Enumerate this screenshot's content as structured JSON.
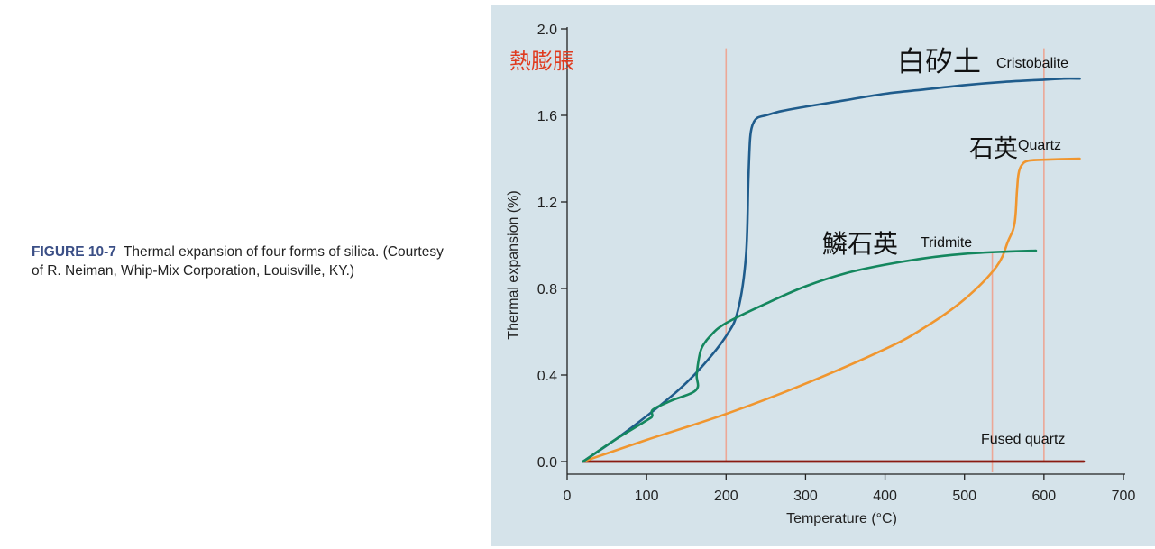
{
  "caption": {
    "label": "FIGURE 10-7",
    "text": "Thermal expansion of four forms of silica. (Courtesy of R. Neiman, Whip-Mix Corporation, Louisville, KY.)"
  },
  "colors": {
    "panel_bg": "#d5e3ea",
    "cristobalite": "#1f5c8c",
    "quartz": "#f0962f",
    "tridymite": "#14875e",
    "fused_quartz": "#8a1b12",
    "vertical_lines": "#eca796",
    "axis": "#222222",
    "japanese_title": "#e03b1f"
  },
  "chart_data": {
    "type": "line",
    "title": "",
    "annotation_title": "熱膨脹",
    "xlabel": "Temperature (°C)",
    "ylabel": "Thermal expansion (%)",
    "xlim": [
      0,
      700
    ],
    "ylim": [
      0,
      2.0
    ],
    "xticks": [
      0,
      100,
      200,
      300,
      400,
      500,
      600,
      700
    ],
    "yticks": [
      0.0,
      0.4,
      0.8,
      1.2,
      1.6,
      2.0
    ],
    "xtick_labels": [
      "0",
      "100",
      "200",
      "300",
      "400",
      "500",
      "600",
      "700"
    ],
    "ytick_labels": [
      "0.0",
      "0.4",
      "0.8",
      "1.2",
      "1.6",
      "2.0"
    ],
    "vertical_markers": [
      {
        "x": 200,
        "y_top": 1.91,
        "y_bottom": 0.0
      },
      {
        "x": 535,
        "y_top": 0.97,
        "y_bottom": -0.05
      },
      {
        "x": 600,
        "y_top": 1.91,
        "y_bottom": 0.0
      }
    ],
    "series": [
      {
        "name": "Cristobalite",
        "label_ja": "白矽土",
        "label_en": "Cristobalite",
        "color_key": "cristobalite",
        "x": [
          20,
          60,
          100,
          140,
          170,
          200,
          215,
          225,
          228,
          230,
          232,
          235,
          240,
          250,
          270,
          300,
          350,
          400,
          450,
          500,
          550,
          600,
          625,
          645
        ],
        "y": [
          0.0,
          0.1,
          0.21,
          0.33,
          0.44,
          0.58,
          0.7,
          0.95,
          1.3,
          1.48,
          1.54,
          1.57,
          1.59,
          1.6,
          1.62,
          1.64,
          1.67,
          1.7,
          1.72,
          1.74,
          1.755,
          1.765,
          1.77,
          1.77
        ]
      },
      {
        "name": "Quartz",
        "label_ja": "石英",
        "label_en": "Quartz",
        "color_key": "quartz",
        "x": [
          20,
          100,
          200,
          300,
          400,
          450,
          500,
          540,
          555,
          563,
          566,
          568,
          572,
          580,
          600,
          645
        ],
        "y": [
          0.0,
          0.1,
          0.22,
          0.36,
          0.52,
          0.62,
          0.75,
          0.9,
          1.02,
          1.1,
          1.25,
          1.33,
          1.37,
          1.39,
          1.395,
          1.4
        ]
      },
      {
        "name": "Tridmite",
        "label_ja": "鱗石英",
        "label_en": "Tridmite",
        "color_key": "tridymite",
        "x": [
          20,
          60,
          100,
          107,
          108,
          130,
          162,
          163,
          166,
          170,
          180,
          200,
          250,
          300,
          350,
          400,
          450,
          500,
          550,
          590
        ],
        "y": [
          0.0,
          0.1,
          0.19,
          0.21,
          0.24,
          0.28,
          0.33,
          0.4,
          0.48,
          0.53,
          0.58,
          0.64,
          0.73,
          0.81,
          0.87,
          0.91,
          0.94,
          0.96,
          0.97,
          0.975
        ]
      },
      {
        "name": "Fused quartz",
        "label_ja": "",
        "label_en": "Fused quartz",
        "color_key": "fused_quartz",
        "x": [
          20,
          650
        ],
        "y": [
          0.0,
          0.0
        ]
      }
    ]
  }
}
